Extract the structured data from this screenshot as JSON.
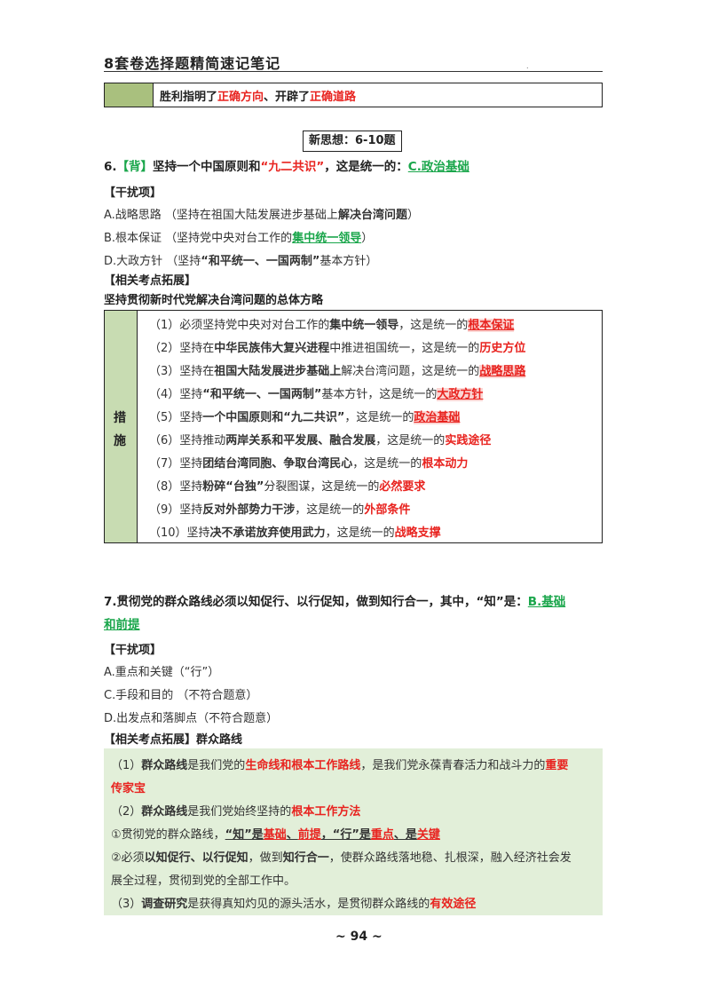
{
  "header": {
    "title": "8套卷选择题精简速记笔记",
    "dot": "."
  },
  "top_row": {
    "t1": "胜利指明了",
    "t2": "正确方向",
    "t3": "、开辟了",
    "t4": "正确道路"
  },
  "section_title": "新思想：6-10题",
  "q6": {
    "num": "6.",
    "tag": "【背】",
    "t1": "坚持一个中国原则和",
    "t2": "“九二共识”",
    "t3": "，这是统一的：",
    "answer": "C.政治基础"
  },
  "q6_distractor_title": "【干扰项】",
  "q6_options": {
    "a1": "A.战略思路 （坚持在祖国大陆发展进步基础上",
    "a2": "解决台湾问题",
    "a3": "）",
    "b1": "B.根本保证 （坚持党中央对台工作的",
    "b2": "集中统一领导",
    "b3": "）",
    "d1": "D.大政方针 （坚持",
    "d2": "“和平统一、一国两制”",
    "d3": "基本方针）"
  },
  "q6_related_title": "【相关考点拓展】",
  "q6_related_subtitle": "坚持贯彻新时代党解决台湾问题的总体方略",
  "measures": {
    "side1": "措",
    "side2": "施",
    "r1": [
      "（1）必须坚持党中央对对台工作的",
      "集中统一领导",
      "，这是统一的",
      "根本保证"
    ],
    "r2": [
      "（2）坚持在",
      "中华民族伟大复兴进程",
      "中推进祖国统一，这是统一的",
      "历史方位"
    ],
    "r3": [
      "（3）坚持在",
      "祖国大陆发展进步基础上",
      "解决台湾问题，这是统一的",
      "战略思路"
    ],
    "r4": [
      "（4）坚持",
      "“和平统一、一国两制”",
      "基本方针，这是统一的",
      "大政方针"
    ],
    "r5": [
      "（5）坚持",
      "一个中国原则和“九二共识”",
      "，这是统一的",
      "政治基础"
    ],
    "r6": [
      "（6）坚持推动",
      "两岸关系和平发展、融合发展",
      "，这是统一的",
      "实践途径"
    ],
    "r7": [
      "（7）坚持",
      "团结台湾同胞、争取台湾民心",
      "，这是统一的",
      "根本动力"
    ],
    "r8": [
      "（8）坚持",
      "粉碎“台独”",
      "分裂图谋，这是统一的",
      "必然要求"
    ],
    "r9": [
      "（9）坚持",
      "反对外部势力干涉",
      "，这是统一的",
      "外部条件"
    ],
    "r10": [
      "（10）坚持",
      "决不承诺放弃使用武力",
      "，这是统一的",
      "战略支撑"
    ]
  },
  "q7": {
    "line1": "7.贯彻党的群众路线必须以知促行、以行促知，做到知行合一，其中，“知”是：",
    "answer1": "B.基础",
    "answer2": "和前提"
  },
  "q7_distractor_title": "【干扰项】",
  "q7_options": {
    "a": "A.重点和关键（“行”）",
    "c": "C.手段和目的 （不符合题意）",
    "d": "D.出发点和落脚点（不符合题意）"
  },
  "q7_related_title": "【相关考点拓展】群众路线",
  "green_box": {
    "l1": [
      "（1）",
      "群众路线",
      "是我们党的",
      "生命线和根本工作路线",
      "，是我们党永葆青春活力和战斗力的",
      "重要"
    ],
    "l1b": "传家宝",
    "l2": [
      "（2）",
      "群众路线",
      "是我们党始终坚持的",
      "根本工作方法"
    ],
    "l3": [
      "①贯彻党的群众路线，",
      "“知”是",
      "基础",
      "、",
      "前提",
      "，“行”是",
      "重点",
      "、是",
      "关键"
    ],
    "l4": [
      "②必须",
      "以知促行、以行促知",
      "，做到",
      "知行合一",
      "，使群众路线落地稳、扎根深，融入经济社会发"
    ],
    "l4b": "展全过程，贯彻到党的全部工作中。",
    "l5": [
      "（3）",
      "调查研究",
      "是获得真知灼见的源头活水，是贯彻群众路线的",
      "有效途径"
    ]
  },
  "footer": {
    "page": "~ 94 ~"
  }
}
